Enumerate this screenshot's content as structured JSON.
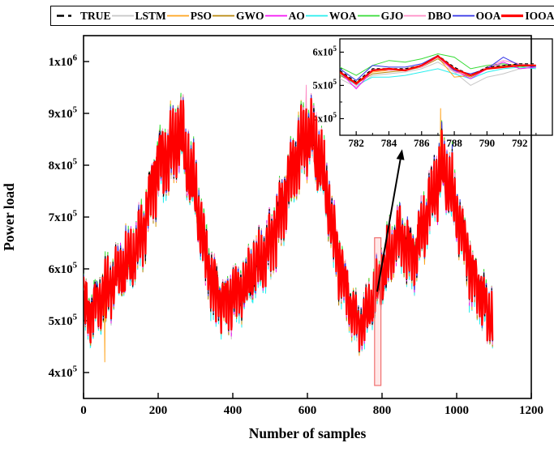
{
  "legend": {
    "items": [
      {
        "label": "TRUE",
        "color": "#000000",
        "dash": "9 5 4 18",
        "width": 2.4
      },
      {
        "label": "LSTM",
        "color": "#c6c6c6",
        "dash": "",
        "width": 1.8
      },
      {
        "label": "PSO",
        "color": "#ffa41e",
        "dash": "",
        "width": 1.8
      },
      {
        "label": "GWO",
        "color": "#b8860b",
        "dash": "",
        "width": 1.8
      },
      {
        "label": "AO",
        "color": "#f414f4",
        "dash": "",
        "width": 1.8
      },
      {
        "label": "WOA",
        "color": "#27eeee",
        "dash": "",
        "width": 1.8
      },
      {
        "label": "GJO",
        "color": "#35db35",
        "dash": "",
        "width": 1.8
      },
      {
        "label": "DBO",
        "color": "#ff8cc6",
        "dash": "",
        "width": 1.8
      },
      {
        "label": "OOA",
        "color": "#3333e6",
        "dash": "",
        "width": 1.8
      },
      {
        "label": "IOOA",
        "color": "#ff0000",
        "dash": "",
        "width": 3.2
      }
    ]
  },
  "chart_data": {
    "type": "line",
    "title": "",
    "xlabel": "Number of samples",
    "ylabel": "Power load",
    "x_range": [
      0,
      1200
    ],
    "y_range": [
      350000,
      1050000
    ],
    "x_ticks": [
      0,
      200,
      400,
      600,
      800,
      1000,
      1200
    ],
    "y_ticks": [
      {
        "value": 400000,
        "label": "4x10^5"
      },
      {
        "value": 500000,
        "label": "5x10^5"
      },
      {
        "value": 600000,
        "label": "6x10^5"
      },
      {
        "value": 700000,
        "label": "7x10^5"
      },
      {
        "value": 800000,
        "label": "8x10^5"
      },
      {
        "value": 900000,
        "label": "9x10^5"
      },
      {
        "value": 1000000,
        "label": "1x10^6"
      }
    ],
    "grid": false,
    "legend_position": "top",
    "n_samples": 1097,
    "series": [
      {
        "name": "TRUE",
        "color": "#000000",
        "width": 1.2,
        "dash": "4 3",
        "z": 9,
        "seed": 901,
        "amp_extra": 0.03,
        "bias": 0
      },
      {
        "name": "LSTM",
        "color": "#c6c6c6",
        "width": 1,
        "dash": "",
        "z": 1,
        "seed": 111,
        "amp_extra": 0.13,
        "bias": -5000
      },
      {
        "name": "PSO",
        "color": "#ffa41e",
        "width": 1,
        "dash": "",
        "z": 3,
        "seed": 222,
        "amp_extra": 0.2,
        "bias": 0
      },
      {
        "name": "GWO",
        "color": "#b8860b",
        "width": 1,
        "dash": "",
        "z": 4,
        "seed": 333,
        "amp_extra": 0.12,
        "bias": -2000
      },
      {
        "name": "AO",
        "color": "#f414f4",
        "width": 1,
        "dash": "",
        "z": 6,
        "seed": 444,
        "amp_extra": 0.13,
        "bias": 0
      },
      {
        "name": "WOA",
        "color": "#27eeee",
        "width": 1,
        "dash": "",
        "z": 2,
        "seed": 555,
        "amp_extra": 0.17,
        "bias": -7000
      },
      {
        "name": "GJO",
        "color": "#35db35",
        "width": 1,
        "dash": "",
        "z": 5,
        "seed": 666,
        "amp_extra": 0.14,
        "bias": 5000
      },
      {
        "name": "DBO",
        "color": "#ff8cc6",
        "width": 1,
        "dash": "",
        "z": 7,
        "seed": 777,
        "amp_extra": 0.13,
        "bias": 2000
      },
      {
        "name": "OOA",
        "color": "#3333e6",
        "width": 1,
        "dash": "",
        "z": 8,
        "seed": 888,
        "amp_extra": 0.09,
        "bias": 2000
      },
      {
        "name": "IOOA",
        "color": "#ff0000",
        "width": 2.2,
        "dash": "",
        "z": 10,
        "seed": 999,
        "amp_extra": 0.0,
        "bias": 0
      }
    ],
    "true_trend_keypoints": [
      [
        0,
        535000
      ],
      [
        15,
        520000
      ],
      [
        30,
        535000
      ],
      [
        45,
        545000
      ],
      [
        60,
        555000
      ],
      [
        80,
        575000
      ],
      [
        100,
        595000
      ],
      [
        120,
        610000
      ],
      [
        140,
        635000
      ],
      [
        160,
        680000
      ],
      [
        175,
        730000
      ],
      [
        190,
        780000
      ],
      [
        205,
        810000
      ],
      [
        220,
        815000
      ],
      [
        235,
        830000
      ],
      [
        250,
        855000
      ],
      [
        262,
        860000
      ],
      [
        275,
        810000
      ],
      [
        290,
        760000
      ],
      [
        300,
        745000
      ],
      [
        310,
        690000
      ],
      [
        325,
        635000
      ],
      [
        340,
        590000
      ],
      [
        355,
        560000
      ],
      [
        370,
        545000
      ],
      [
        385,
        540000
      ],
      [
        400,
        550000
      ],
      [
        415,
        555000
      ],
      [
        430,
        565000
      ],
      [
        445,
        580000
      ],
      [
        460,
        600000
      ],
      [
        475,
        615000
      ],
      [
        490,
        630000
      ],
      [
        505,
        655000
      ],
      [
        520,
        690000
      ],
      [
        535,
        730000
      ],
      [
        550,
        770000
      ],
      [
        565,
        805000
      ],
      [
        580,
        830000
      ],
      [
        595,
        855000
      ],
      [
        610,
        850000
      ],
      [
        625,
        820000
      ],
      [
        640,
        790000
      ],
      [
        655,
        730000
      ],
      [
        670,
        670000
      ],
      [
        685,
        615000
      ],
      [
        700,
        570000
      ],
      [
        715,
        530000
      ],
      [
        730,
        505000
      ],
      [
        745,
        495000
      ],
      [
        760,
        515000
      ],
      [
        775,
        540000
      ],
      [
        790,
        560000
      ],
      [
        805,
        590000
      ],
      [
        820,
        620000
      ],
      [
        835,
        655000
      ],
      [
        845,
        670000
      ],
      [
        855,
        660000
      ],
      [
        870,
        635000
      ],
      [
        885,
        630000
      ],
      [
        900,
        660000
      ],
      [
        915,
        690000
      ],
      [
        930,
        730000
      ],
      [
        945,
        760000
      ],
      [
        960,
        785000
      ],
      [
        970,
        780000
      ],
      [
        985,
        750000
      ],
      [
        1000,
        710000
      ],
      [
        1015,
        670000
      ],
      [
        1030,
        630000
      ],
      [
        1045,
        580000
      ],
      [
        1060,
        560000
      ],
      [
        1075,
        530000
      ],
      [
        1085,
        510000
      ],
      [
        1096,
        515000
      ]
    ],
    "oscillation": {
      "period": 7,
      "amplitude_keypoints": [
        [
          0,
          55000
        ],
        [
          100,
          60000
        ],
        [
          170,
          70000
        ],
        [
          200,
          75000
        ],
        [
          260,
          80000
        ],
        [
          320,
          70000
        ],
        [
          380,
          55000
        ],
        [
          450,
          60000
        ],
        [
          520,
          65000
        ],
        [
          600,
          80000
        ],
        [
          660,
          70000
        ],
        [
          730,
          50000
        ],
        [
          790,
          52000
        ],
        [
          850,
          62000
        ],
        [
          900,
          60000
        ],
        [
          960,
          78000
        ],
        [
          1020,
          62000
        ],
        [
          1096,
          55000
        ]
      ],
      "shared_noise": 30000,
      "series_noise": 12000
    },
    "outliers": [
      {
        "series": "PSO",
        "x": 57,
        "value": 420000
      },
      {
        "series": "DBO",
        "x": 597,
        "value": 955000
      },
      {
        "series": "PSO",
        "x": 957,
        "value": 910000
      }
    ],
    "highlight": {
      "x_min": 780,
      "x_max": 797,
      "y_min": 375000,
      "y_max": 660000
    },
    "annotation_arrow": {
      "from": [
        787,
        556000
      ],
      "to": [
        854,
        831000
      ]
    },
    "inset": {
      "x_range": [
        781,
        794
      ],
      "y_range": [
        350000,
        640000
      ],
      "x_ticks": [
        782,
        784,
        786,
        788,
        790,
        792
      ],
      "x_minor_ticks": [
        781,
        783,
        785,
        787,
        789,
        791,
        793
      ],
      "y_ticks": [
        {
          "value": 400000,
          "label": "4x10^5"
        },
        {
          "value": 500000,
          "label": "5x10^5"
        },
        {
          "value": 600000,
          "label": "6x10^5"
        }
      ],
      "y_minor_ticks": [
        450000,
        550000
      ],
      "x": [
        781,
        782,
        783,
        784,
        785,
        786,
        787,
        788,
        789,
        790,
        791,
        792,
        793
      ],
      "series_values": {
        "TRUE": [
          545000,
          510000,
          550000,
          550000,
          550000,
          560000,
          590000,
          555000,
          530000,
          555000,
          560000,
          565000,
          565000
        ],
        "LSTM": [
          520000,
          495000,
          530000,
          535000,
          540000,
          550000,
          570000,
          540000,
          500000,
          525000,
          535000,
          550000,
          555000
        ],
        "PSO": [
          535000,
          510000,
          540000,
          545000,
          550000,
          560000,
          585000,
          525000,
          530000,
          550000,
          560000,
          565000,
          560000
        ],
        "GWO": [
          530000,
          505000,
          535000,
          540000,
          545000,
          555000,
          580000,
          545000,
          525000,
          550000,
          560000,
          560000,
          560000
        ],
        "AO": [
          540000,
          490000,
          545000,
          550000,
          545000,
          560000,
          585000,
          545000,
          520000,
          550000,
          570000,
          550000,
          555000
        ],
        "WOA": [
          535000,
          500000,
          525000,
          525000,
          530000,
          540000,
          550000,
          535000,
          520000,
          540000,
          550000,
          555000,
          550000
        ],
        "GJO": [
          555000,
          530000,
          560000,
          575000,
          570000,
          580000,
          595000,
          585000,
          550000,
          560000,
          565000,
          555000,
          560000
        ],
        "DBO": [
          545000,
          500000,
          550000,
          545000,
          550000,
          555000,
          585000,
          540000,
          530000,
          555000,
          575000,
          565000,
          560000
        ],
        "OOA": [
          550000,
          515000,
          560000,
          555000,
          555000,
          565000,
          590000,
          545000,
          535000,
          550000,
          585000,
          560000,
          555000
        ],
        "IOOA": [
          540000,
          505000,
          545000,
          550000,
          545000,
          560000,
          588000,
          550000,
          530000,
          550000,
          555000,
          560000,
          560000
        ]
      }
    }
  }
}
